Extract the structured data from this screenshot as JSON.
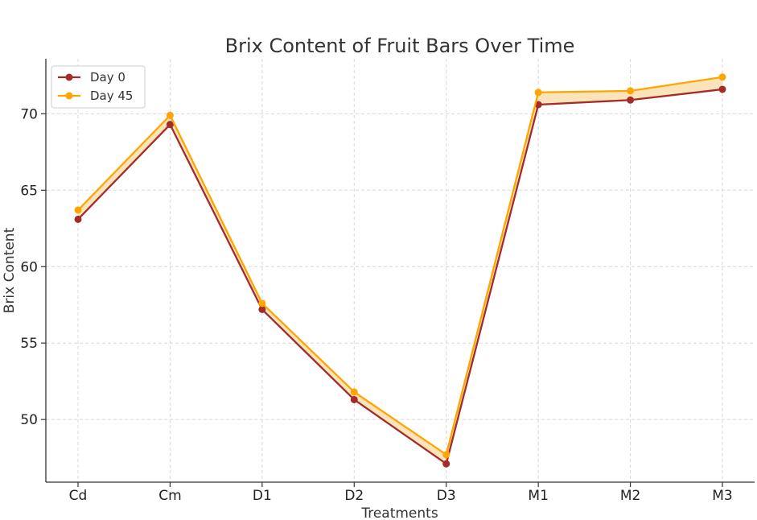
{
  "chart_data": {
    "type": "line",
    "title": "Brix Content of Fruit Bars Over Time",
    "xlabel": "Treatments",
    "ylabel": "Brix Content",
    "categories": [
      "Cd",
      "Cm",
      "D1",
      "D2",
      "D3",
      "M1",
      "M2",
      "M3"
    ],
    "ylim": [
      45.9,
      73.6
    ],
    "yticks": [
      50,
      55,
      60,
      65,
      70
    ],
    "grid": true,
    "legend_position": "top-left",
    "fill_between_series": true,
    "fill_color": "#fbe3b6",
    "series": [
      {
        "name": "Day 0",
        "color": "#a52a2a",
        "values": [
          63.1,
          69.3,
          57.2,
          51.3,
          47.1,
          70.6,
          70.9,
          71.6
        ]
      },
      {
        "name": "Day 45",
        "color": "#ffa500",
        "values": [
          63.7,
          69.9,
          57.6,
          51.8,
          47.7,
          71.4,
          71.5,
          72.4
        ]
      }
    ]
  }
}
